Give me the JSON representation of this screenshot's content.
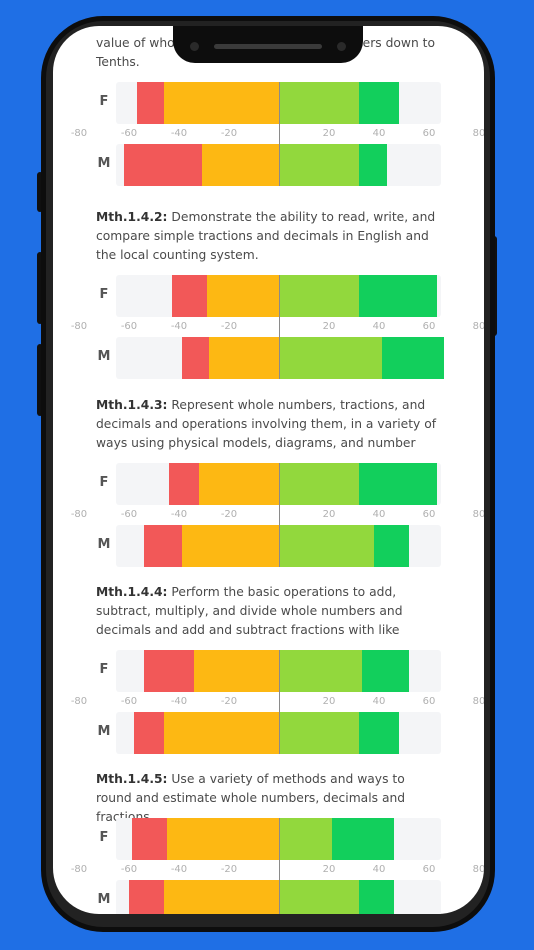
{
  "colors": {
    "background": "#1f6fe5",
    "strongly_disagree": "#f25858",
    "disagree": "#fdb813",
    "agree": "#92d83d",
    "strongly_agree": "#12cf5c"
  },
  "row_labels": [
    "F",
    "M"
  ],
  "tick_labels": [
    "-80",
    "-60",
    "-40",
    "-20",
    "20",
    "40",
    "60",
    "80"
  ],
  "chart_data": {
    "type": "bar",
    "orientation": "horizontal-diverging",
    "xlim": [
      -100,
      100
    ],
    "ticks": [
      -80,
      -60,
      -40,
      -20,
      20,
      40,
      60,
      80
    ],
    "groups": [
      {
        "code": "",
        "text": "value of whole numbers and decimal numbers down to Tenths.",
        "rows": [
          {
            "label": "F",
            "left": [
              -57,
              -46
            ],
            "right": [
              32,
              48
            ]
          },
          {
            "label": "M",
            "left": [
              -62,
              -31
            ],
            "right": [
              32,
              43
            ]
          }
        ]
      },
      {
        "code": "Mth.1.4.2:",
        "text": "Demonstrate the ability to read, write, and compare simple tractions and decimals in English and the local counting system.",
        "rows": [
          {
            "label": "F",
            "left": [
              -43,
              -29
            ],
            "right": [
              32,
              63
            ]
          },
          {
            "label": "M",
            "left": [
              -39,
              -28
            ],
            "right": [
              41,
              66
            ]
          }
        ]
      },
      {
        "code": "Mth.1.4.3:",
        "text": "Represent whole numbers, tractions, and decimals and operations involving them, in a variety of ways using physical models, diagrams, and number",
        "rows": [
          {
            "label": "F",
            "left": [
              -44,
              -32
            ],
            "right": [
              32,
              63
            ]
          },
          {
            "label": "M",
            "left": [
              -54,
              -39
            ],
            "right": [
              38,
              52
            ]
          }
        ]
      },
      {
        "code": "Mth.1.4.4:",
        "text": "Perform the basic operations to add, subtract, multiply, and divide whole numbers and decimals and add and subtract fractions with like",
        "rows": [
          {
            "label": "F",
            "left": [
              -54,
              -34
            ],
            "right": [
              33,
              52
            ]
          },
          {
            "label": "M",
            "left": [
              -58,
              -46
            ],
            "right": [
              32,
              48
            ]
          }
        ]
      },
      {
        "code": "Mth.1.4.5:",
        "text": "Use a variety of methods and ways to round and estimate whole numbers, decimals and fractions.",
        "rows": [
          {
            "label": "F",
            "left": [
              -59,
              -45
            ],
            "right": [
              21,
              46
            ]
          },
          {
            "label": "M",
            "left": [
              -60,
              -46
            ],
            "right": [
              32,
              46
            ]
          }
        ]
      }
    ]
  }
}
